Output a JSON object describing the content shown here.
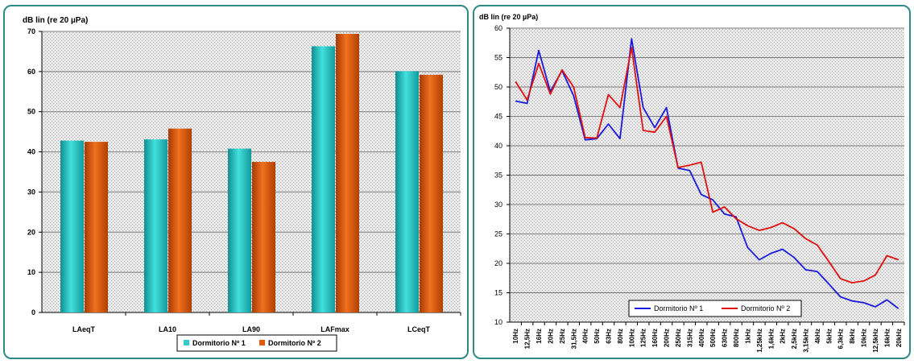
{
  "chart_data": [
    {
      "type": "bar",
      "ylabel": "dB lin (re 20 µPa)",
      "categories": [
        "LAeqT",
        "LA10",
        "LA90",
        "LAFmax",
        "LCeqT"
      ],
      "ylim": [
        0,
        70
      ],
      "yticks": [
        0,
        10,
        20,
        30,
        40,
        50,
        60,
        70
      ],
      "grid": true,
      "legend_position": "bottom",
      "series": [
        {
          "name": "Dormitorio Nº 1",
          "color": "#33cccc",
          "values": [
            42.8,
            43.1,
            40.8,
            66.3,
            60.1
          ]
        },
        {
          "name": "Dormitorio Nº 2",
          "color": "#e05a10",
          "values": [
            42.5,
            45.8,
            37.5,
            69.4,
            59.2
          ]
        }
      ]
    },
    {
      "type": "line",
      "ylabel": "dB lin (re 20 µPa)",
      "x": [
        "10Hz",
        "12,5Hz",
        "16Hz",
        "20Hz",
        "25Hz",
        "31,5Hz",
        "40Hz",
        "50Hz",
        "63Hz",
        "80Hz",
        "100Hz",
        "125Hz",
        "160Hz",
        "200Hz",
        "250Hz",
        "315Hz",
        "400Hz",
        "500Hz",
        "630Hz",
        "800Hz",
        "1kHz",
        "1,25kHz",
        "1,6kHz",
        "2kHz",
        "2,5kHz",
        "3,15kHz",
        "4kHz",
        "5kHz",
        "6,3kHz",
        "8kHz",
        "10kHz",
        "12,5kHz",
        "16kHz",
        "20kHz"
      ],
      "ylim": [
        10,
        60
      ],
      "yticks": [
        10,
        15,
        20,
        25,
        30,
        35,
        40,
        45,
        50,
        55,
        60
      ],
      "grid": true,
      "legend_position": "bottom-left",
      "series": [
        {
          "name": "Dormitorio Nº 1",
          "color": "#1a1adc",
          "values": [
            47.6,
            47.2,
            56.2,
            49.2,
            52.8,
            48.5,
            41.0,
            41.2,
            43.7,
            41.2,
            58.2,
            46.5,
            43.1,
            46.5,
            36.2,
            35.8,
            31.7,
            30.8,
            28.4,
            27.9,
            22.7,
            20.6,
            21.7,
            22.4,
            21.0,
            18.9,
            18.6,
            16.5,
            14.3,
            13.6,
            13.3,
            12.6,
            13.8,
            12.3
          ]
        },
        {
          "name": "Dormitorio Nº 2",
          "color": "#e01010",
          "values": [
            50.9,
            47.8,
            54.0,
            48.8,
            52.9,
            50.0,
            41.4,
            41.3,
            48.7,
            46.5,
            56.7,
            42.6,
            42.3,
            45.0,
            36.3,
            36.7,
            37.2,
            28.7,
            29.6,
            27.6,
            26.4,
            25.6,
            26.1,
            26.9,
            25.9,
            24.2,
            23.1,
            20.3,
            17.4,
            16.7,
            17.0,
            18.0,
            21.3,
            20.6
          ]
        }
      ]
    }
  ]
}
